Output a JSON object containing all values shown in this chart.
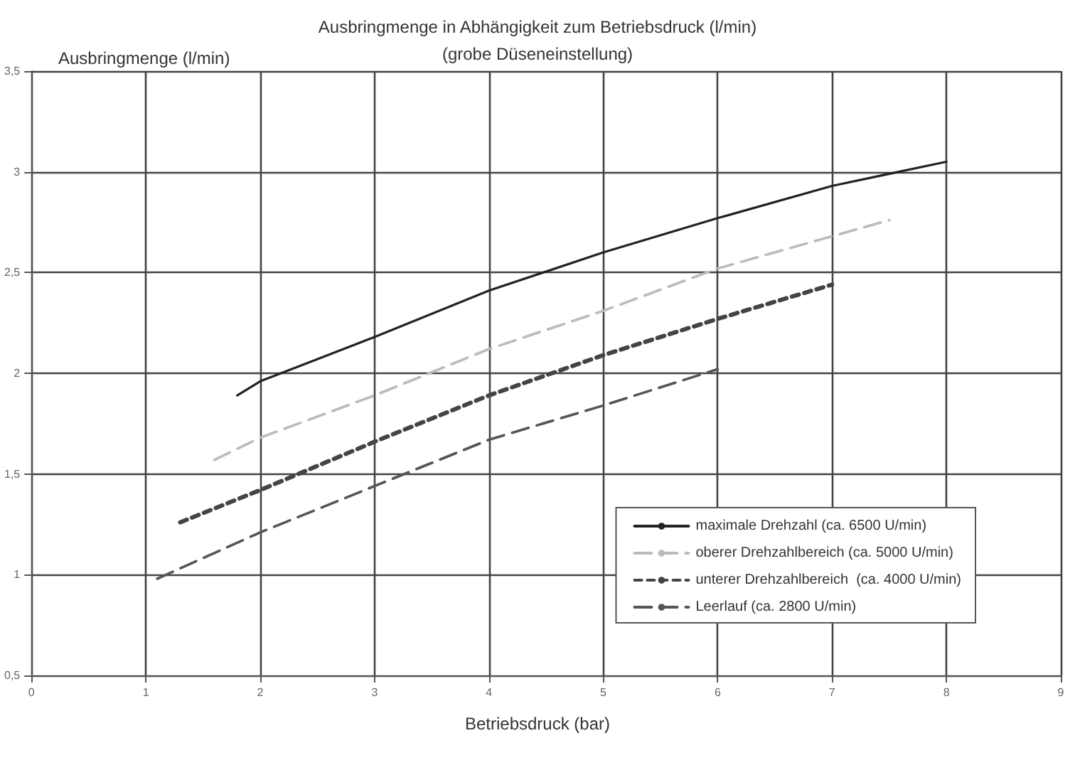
{
  "chart_data": {
    "type": "line",
    "title": "Ausbringmenge in Abhängigkeit zum Betriebsdruck (l/min)",
    "subtitle": "(grobe Düseneinstellung)",
    "xlabel": "Betriebsdruck (bar)",
    "ylabel": "Ausbringmenge (l/min)",
    "xlim": [
      0,
      9
    ],
    "xticks": [
      0,
      1,
      2,
      3,
      4,
      5,
      6,
      7,
      8,
      9
    ],
    "ylim": [
      0.5,
      3.5
    ],
    "yticks": [
      {
        "value": 0.5,
        "label": "0,5"
      },
      1,
      {
        "value": 1.5,
        "label": "1,5"
      },
      2,
      {
        "value": 2.5,
        "label": "2,5"
      },
      3,
      {
        "value": 3.5,
        "label": "3,5"
      }
    ],
    "grid": true,
    "legend": "bottom right",
    "marker": "none",
    "series": [
      {
        "name": "maximale Drehzahl (ca. 6500 U/min)",
        "color": "#222222",
        "line_style": "solid",
        "x": [
          1.8,
          2,
          3,
          4,
          5,
          6,
          7,
          8
        ],
        "values": [
          1.89,
          1.96,
          2.18,
          2.41,
          2.6,
          2.77,
          2.93,
          3.05
        ]
      },
      {
        "name": "oberer Drehzahlbereich (ca. 5000 U/min)",
        "color": "#bbbbbb",
        "line_style": "dashed",
        "x": [
          1.6,
          2,
          3,
          4,
          5,
          6,
          7,
          7.5
        ],
        "values": [
          1.57,
          1.68,
          1.89,
          2.12,
          2.31,
          2.52,
          2.68,
          2.76
        ]
      },
      {
        "name": "unterer Drehzahlbereich  (ca. 4000 U/min)",
        "color": "#444444",
        "line_style": "dotted",
        "x": [
          1.3,
          2,
          3,
          4,
          5,
          6,
          7
        ],
        "values": [
          1.26,
          1.42,
          1.66,
          1.89,
          2.09,
          2.27,
          2.44
        ]
      },
      {
        "name": "Leerlauf (ca. 2800 U/min)",
        "color": "#555555",
        "line_style": "dashed",
        "x": [
          1.1,
          2,
          3,
          4,
          5,
          6
        ],
        "values": [
          0.98,
          1.21,
          1.44,
          1.67,
          1.84,
          2.02
        ]
      }
    ]
  }
}
